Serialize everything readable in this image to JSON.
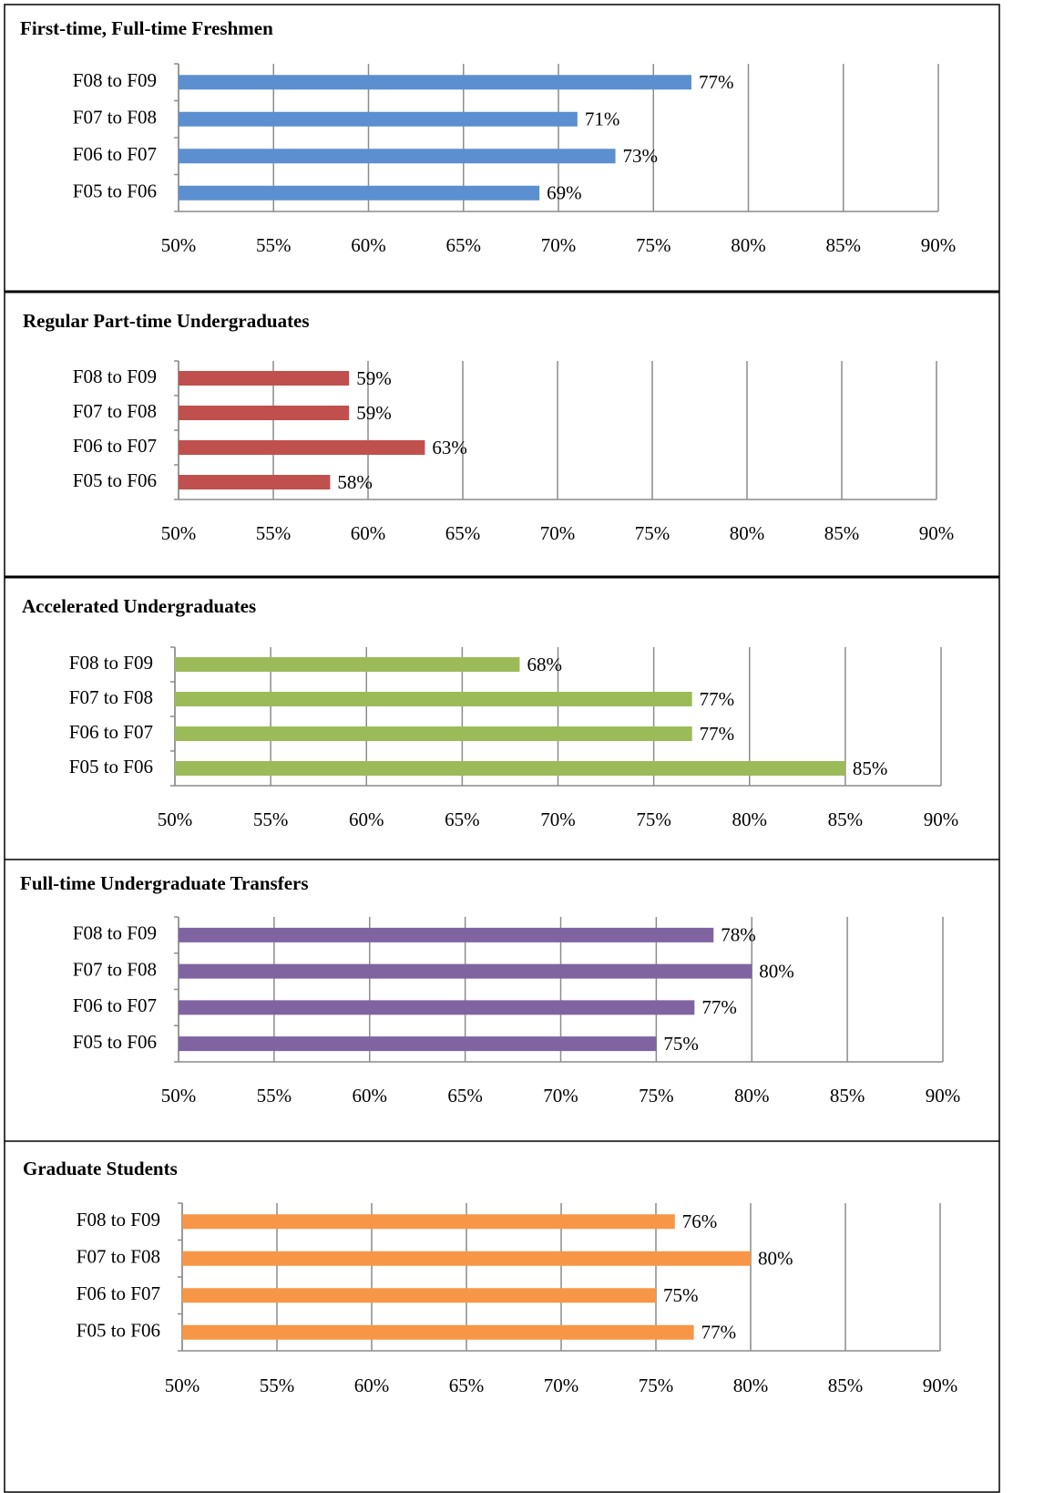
{
  "chart_data": [
    {
      "type": "hbar",
      "title": "First-time, Full-time Freshmen",
      "categories": [
        "F08 to F09",
        "F07 to F08",
        "F06 to F07",
        "F05 to F06"
      ],
      "values": [
        77,
        71,
        73,
        69
      ],
      "value_labels": [
        "77%",
        "71%",
        "73%",
        "69%"
      ],
      "color": "#5b8fd0",
      "xlim": [
        50,
        90
      ],
      "xticks": [
        {
          "value": 50,
          "label": "50%"
        },
        {
          "value": 55,
          "label": "55%"
        },
        {
          "value": 60,
          "label": "60%"
        },
        {
          "value": 65,
          "label": "65%"
        },
        {
          "value": 70,
          "label": "70%"
        },
        {
          "value": 75,
          "label": "75%"
        },
        {
          "value": 80,
          "label": "80%"
        },
        {
          "value": 85,
          "label": "85%"
        },
        {
          "value": 90,
          "label": "90%"
        }
      ],
      "grid": true
    },
    {
      "type": "hbar",
      "title": "Regular Part-time Undergraduates",
      "categories": [
        "F08 to F09",
        "F07 to F08",
        "F06 to F07",
        "F05 to F06"
      ],
      "values": [
        59,
        59,
        63,
        58
      ],
      "value_labels": [
        "59%",
        "59%",
        "63%",
        "58%"
      ],
      "color": "#c0504d",
      "xlim": [
        50,
        90
      ],
      "xticks": [
        {
          "value": 50,
          "label": "50%"
        },
        {
          "value": 55,
          "label": "55%"
        },
        {
          "value": 60,
          "label": "60%"
        },
        {
          "value": 65,
          "label": "65%"
        },
        {
          "value": 70,
          "label": "70%"
        },
        {
          "value": 75,
          "label": "75%"
        },
        {
          "value": 80,
          "label": "80%"
        },
        {
          "value": 85,
          "label": "85%"
        },
        {
          "value": 90,
          "label": "90%"
        }
      ],
      "grid": true
    },
    {
      "type": "hbar",
      "title": "Accelerated Undergraduates",
      "categories": [
        "F08 to F09",
        "F07 to F08",
        "F06 to F07",
        "F05 to F06"
      ],
      "values": [
        68,
        77,
        77,
        85
      ],
      "value_labels": [
        "68%",
        "77%",
        "77%",
        "85%"
      ],
      "color": "#9bbb59",
      "xlim": [
        50,
        90
      ],
      "xticks": [
        {
          "value": 50,
          "label": "50%"
        },
        {
          "value": 55,
          "label": "55%"
        },
        {
          "value": 60,
          "label": "60%"
        },
        {
          "value": 65,
          "label": "65%"
        },
        {
          "value": 70,
          "label": "70%"
        },
        {
          "value": 75,
          "label": "75%"
        },
        {
          "value": 80,
          "label": "80%"
        },
        {
          "value": 85,
          "label": "85%"
        },
        {
          "value": 90,
          "label": "90%"
        }
      ],
      "grid": true
    },
    {
      "type": "hbar",
      "title": "Full-time Undergraduate  Transfers",
      "categories": [
        "F08 to F09",
        "F07 to F08",
        "F06 to F07",
        "F05 to F06"
      ],
      "values": [
        78,
        80,
        77,
        75
      ],
      "value_labels": [
        "78%",
        "80%",
        "77%",
        "75%"
      ],
      "color": "#8064a2",
      "xlim": [
        50,
        90
      ],
      "xticks": [
        {
          "value": 50,
          "label": "50%"
        },
        {
          "value": 55,
          "label": "55%"
        },
        {
          "value": 60,
          "label": "60%"
        },
        {
          "value": 65,
          "label": "65%"
        },
        {
          "value": 70,
          "label": "70%"
        },
        {
          "value": 75,
          "label": "75%"
        },
        {
          "value": 80,
          "label": "80%"
        },
        {
          "value": 85,
          "label": "85%"
        },
        {
          "value": 90,
          "label": "90%"
        }
      ],
      "grid": true
    },
    {
      "type": "hbar",
      "title": "Graduate Students",
      "categories": [
        "F08 to F09",
        "F07 to F08",
        "F06 to F07",
        "F05 to F06"
      ],
      "values": [
        76,
        80,
        75,
        77
      ],
      "value_labels": [
        "76%",
        "80%",
        "75%",
        "77%"
      ],
      "color": "#f79646",
      "xlim": [
        50,
        90
      ],
      "xticks": [
        {
          "value": 50,
          "label": "50%"
        },
        {
          "value": 55,
          "label": "55%"
        },
        {
          "value": 60,
          "label": "60%"
        },
        {
          "value": 65,
          "label": "65%"
        },
        {
          "value": 70,
          "label": "70%"
        },
        {
          "value": 75,
          "label": "75%"
        },
        {
          "value": 80,
          "label": "80%"
        },
        {
          "value": 85,
          "label": "85%"
        },
        {
          "value": 90,
          "label": "90%"
        }
      ],
      "grid": true
    }
  ]
}
